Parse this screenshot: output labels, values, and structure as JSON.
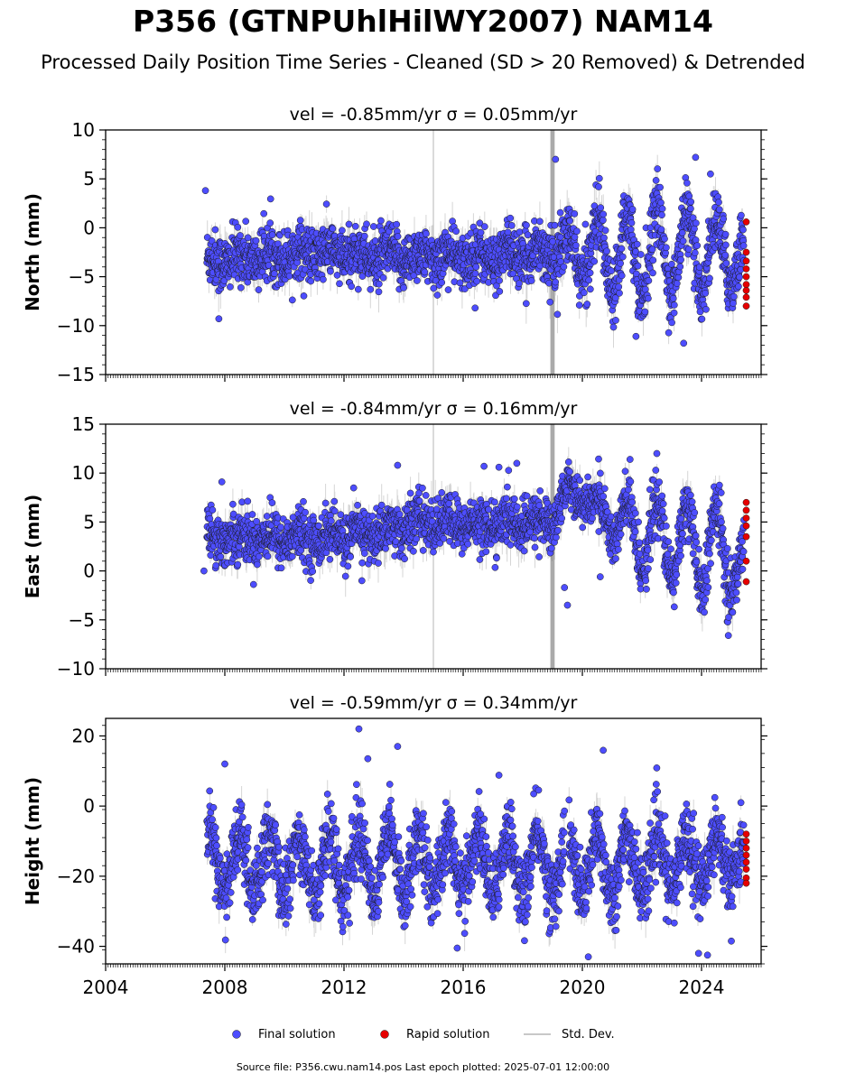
{
  "title": "P356 (GTNPUhlHilWY2007) NAM14",
  "subtitle": "Processed Daily Position Time Series - Cleaned (SD > 20 Removed) & Detrended",
  "footer": "Source file: P356.cwu.nam14.pos  Last epoch plotted: 2025-07-01 12:00:00",
  "legend": {
    "final": "Final solution",
    "rapid": "Rapid solution",
    "std": "Std. Dev."
  },
  "colors": {
    "final": "#4d4dff",
    "rapid": "#e60000",
    "std": "#b4b4b4",
    "outline": "#1a1a1a"
  },
  "chart_data": [
    {
      "type": "scatter",
      "panel": "north",
      "title": "vel = -0.85mm/yr   σ = 0.05mm/yr",
      "ylabel": "North (mm)",
      "xlim": [
        2004,
        2026
      ],
      "ylim": [
        -15,
        10
      ],
      "yticks": [
        -15,
        -10,
        -5,
        0,
        5,
        10
      ],
      "xticks": [
        2004,
        2008,
        2012,
        2016,
        2020,
        2024
      ],
      "show_x_tick_labels": false,
      "series_final_summary": [
        {
          "x": 2007.4,
          "mean": -3.5,
          "amp": 0.5,
          "spread": 1.5
        },
        {
          "x": 2009.0,
          "mean": -3.0,
          "amp": 0.5,
          "spread": 1.4
        },
        {
          "x": 2011.0,
          "mean": -2.5,
          "amp": 0.5,
          "spread": 1.4
        },
        {
          "x": 2013.0,
          "mean": -3.0,
          "amp": 0.6,
          "spread": 1.4
        },
        {
          "x": 2015.0,
          "mean": -3.0,
          "amp": 0.6,
          "spread": 1.4
        },
        {
          "x": 2017.0,
          "mean": -3.0,
          "amp": 0.7,
          "spread": 1.4
        },
        {
          "x": 2019.0,
          "mean": -2.5,
          "amp": 1.0,
          "spread": 1.5
        },
        {
          "x": 2020.5,
          "mean": -2.5,
          "amp": 3.5,
          "spread": 1.6
        },
        {
          "x": 2022.0,
          "mean": -2.5,
          "amp": 4.5,
          "spread": 1.6
        },
        {
          "x": 2024.0,
          "mean": -2.5,
          "amp": 4.0,
          "spread": 1.6
        },
        {
          "x": 2025.3,
          "mean": -3.0,
          "amp": 2.5,
          "spread": 1.6
        }
      ],
      "outliers": [
        {
          "x": 2007.35,
          "y": 3.8
        },
        {
          "x": 2007.8,
          "y": -9.3
        },
        {
          "x": 2019.1,
          "y": 7.0
        },
        {
          "x": 2023.8,
          "y": 7.2
        },
        {
          "x": 2024.3,
          "y": 5.5
        },
        {
          "x": 2023.4,
          "y": -11.8
        },
        {
          "x": 2021.8,
          "y": -11.1
        },
        {
          "x": 2016.4,
          "y": -8.2
        }
      ],
      "rapid": [
        {
          "x": 2025.5,
          "y": 0.6
        },
        {
          "x": 2025.5,
          "y": -2.5
        },
        {
          "x": 2025.5,
          "y": -3.4
        },
        {
          "x": 2025.5,
          "y": -4.2
        },
        {
          "x": 2025.5,
          "y": -5.0
        },
        {
          "x": 2025.5,
          "y": -5.8
        },
        {
          "x": 2025.5,
          "y": -6.4
        },
        {
          "x": 2025.5,
          "y": -7.1
        },
        {
          "x": 2025.5,
          "y": -8.0
        }
      ],
      "burst_x": 2019.0,
      "burst_range": [
        -15,
        10
      ],
      "gap_lines": [
        2015.0
      ]
    },
    {
      "type": "scatter",
      "panel": "east",
      "title": "vel = -0.84mm/yr   σ = 0.16mm/yr",
      "ylabel": "East (mm)",
      "xlim": [
        2004,
        2026
      ],
      "ylim": [
        -10,
        15
      ],
      "yticks": [
        -10,
        -5,
        0,
        5,
        10,
        15
      ],
      "xticks": [
        2004,
        2008,
        2012,
        2016,
        2020,
        2024
      ],
      "show_x_tick_labels": false,
      "series_final_summary": [
        {
          "x": 2007.4,
          "mean": 3.5,
          "amp": 0.5,
          "spread": 1.3
        },
        {
          "x": 2009.0,
          "mean": 3.5,
          "amp": 0.5,
          "spread": 1.3
        },
        {
          "x": 2011.0,
          "mean": 3.3,
          "amp": 0.5,
          "spread": 1.3
        },
        {
          "x": 2013.0,
          "mean": 3.8,
          "amp": 0.5,
          "spread": 1.3
        },
        {
          "x": 2014.5,
          "mean": 5.0,
          "amp": 0.6,
          "spread": 1.3
        },
        {
          "x": 2016.5,
          "mean": 4.7,
          "amp": 0.5,
          "spread": 1.3
        },
        {
          "x": 2019.0,
          "mean": 5.0,
          "amp": 0.6,
          "spread": 1.3
        },
        {
          "x": 2019.5,
          "mean": 8.5,
          "amp": 0.6,
          "spread": 1.0
        },
        {
          "x": 2020.5,
          "mean": 6.5,
          "amp": 1.0,
          "spread": 1.2
        },
        {
          "x": 2021.5,
          "mean": 4.0,
          "amp": 3.0,
          "spread": 1.5
        },
        {
          "x": 2023.0,
          "mean": 3.0,
          "amp": 4.0,
          "spread": 1.5
        },
        {
          "x": 2024.5,
          "mean": 2.0,
          "amp": 4.5,
          "spread": 1.5
        },
        {
          "x": 2025.3,
          "mean": 1.0,
          "amp": 3.5,
          "spread": 1.5
        }
      ],
      "outliers": [
        {
          "x": 2007.3,
          "y": 0.0
        },
        {
          "x": 2007.9,
          "y": 9.1
        },
        {
          "x": 2013.8,
          "y": 10.8
        },
        {
          "x": 2016.7,
          "y": 10.7
        },
        {
          "x": 2017.2,
          "y": 10.6
        },
        {
          "x": 2017.8,
          "y": 11.0
        },
        {
          "x": 2019.5,
          "y": -3.5
        },
        {
          "x": 2019.4,
          "y": -1.7
        },
        {
          "x": 2020.6,
          "y": -0.6
        },
        {
          "x": 2021.6,
          "y": 11.4
        },
        {
          "x": 2022.5,
          "y": 12.0
        },
        {
          "x": 2024.9,
          "y": -6.6
        },
        {
          "x": 2012.6,
          "y": -1.0
        }
      ],
      "rapid": [
        {
          "x": 2025.5,
          "y": 7.0
        },
        {
          "x": 2025.5,
          "y": 6.2
        },
        {
          "x": 2025.5,
          "y": 5.4
        },
        {
          "x": 2025.5,
          "y": 4.6
        },
        {
          "x": 2025.5,
          "y": 3.5
        },
        {
          "x": 2025.5,
          "y": 1.0
        },
        {
          "x": 2025.5,
          "y": -1.1
        }
      ],
      "burst_x": 2019.0,
      "burst_range": [
        -10,
        15
      ],
      "gap_lines": [
        2015.0
      ]
    },
    {
      "type": "scatter",
      "panel": "height",
      "title": "vel = -0.59mm/yr   σ = 0.34mm/yr",
      "ylabel": "Height (mm)",
      "xlim": [
        2004,
        2026
      ],
      "ylim": [
        -45,
        25
      ],
      "yticks": [
        -40,
        -20,
        0,
        20
      ],
      "xticks": [
        2004,
        2008,
        2012,
        2016,
        2020,
        2024
      ],
      "show_x_tick_labels": true,
      "series_final_summary": [
        {
          "x": 2007.4,
          "mean": -16,
          "amp": 8,
          "spread": 5
        },
        {
          "x": 2010.0,
          "mean": -17,
          "amp": 8,
          "spread": 5
        },
        {
          "x": 2013.0,
          "mean": -16,
          "amp": 9,
          "spread": 5
        },
        {
          "x": 2016.0,
          "mean": -16,
          "amp": 9,
          "spread": 5
        },
        {
          "x": 2019.0,
          "mean": -17,
          "amp": 9,
          "spread": 5
        },
        {
          "x": 2021.0,
          "mean": -17,
          "amp": 8,
          "spread": 5
        },
        {
          "x": 2023.0,
          "mean": -16,
          "amp": 8,
          "spread": 5
        },
        {
          "x": 2025.3,
          "mean": -14,
          "amp": 7,
          "spread": 5
        }
      ],
      "outliers": [
        {
          "x": 2012.5,
          "y": 22.0
        },
        {
          "x": 2012.8,
          "y": 13.5
        },
        {
          "x": 2013.8,
          "y": 17.0
        },
        {
          "x": 2020.7,
          "y": 15.9
        },
        {
          "x": 2008.0,
          "y": 12.0
        },
        {
          "x": 2015.8,
          "y": -40.5
        },
        {
          "x": 2023.9,
          "y": -42.0
        },
        {
          "x": 2024.2,
          "y": -42.5
        },
        {
          "x": 2020.2,
          "y": -43.0
        },
        {
          "x": 2025.0,
          "y": -38.5
        },
        {
          "x": 2017.2,
          "y": 8.8
        }
      ],
      "rapid": [
        {
          "x": 2025.5,
          "y": -8.0
        },
        {
          "x": 2025.5,
          "y": -10.0
        },
        {
          "x": 2025.5,
          "y": -12.0
        },
        {
          "x": 2025.5,
          "y": -14.0
        },
        {
          "x": 2025.5,
          "y": -16.0
        },
        {
          "x": 2025.5,
          "y": -18.0
        },
        {
          "x": 2025.5,
          "y": -20.5
        },
        {
          "x": 2025.5,
          "y": -22.0
        }
      ],
      "gap": [
        2019.4,
        2019.55
      ]
    }
  ]
}
